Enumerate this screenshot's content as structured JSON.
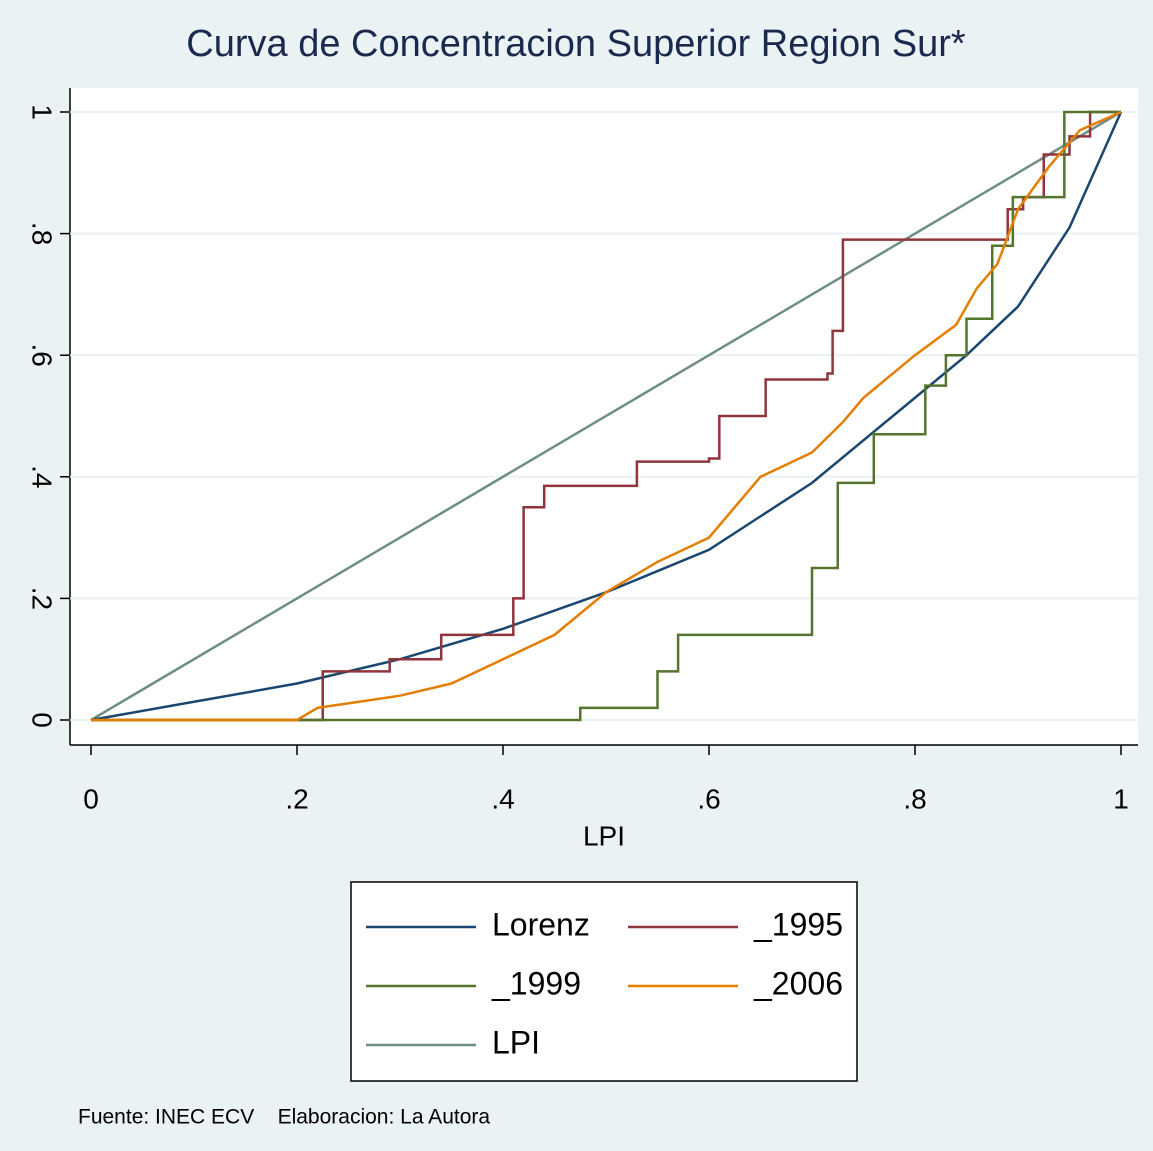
{
  "chart_data": {
    "type": "line",
    "title": "Curva de Concentracion Superior Region Sur*",
    "x_label": "LPI",
    "footnote": "Fuente: INEC ECV    Elaboracion: La Autora",
    "xlim": [
      0,
      1
    ],
    "ylim": [
      0,
      1
    ],
    "xticks": [
      0,
      {
        "value": 0.2,
        "label": ".2"
      },
      {
        "value": 0.4,
        "label": ".4"
      },
      {
        "value": 0.6,
        "label": ".6"
      },
      {
        "value": 0.8,
        "label": ".8"
      },
      1
    ],
    "yticks": [
      0,
      {
        "value": 0.2,
        "label": ".2"
      },
      {
        "value": 0.4,
        "label": ".4"
      },
      {
        "value": 0.6,
        "label": ".6"
      },
      {
        "value": 0.8,
        "label": ".8"
      },
      1
    ],
    "grid": true,
    "legend": "bottom",
    "series": [
      {
        "name": "Lorenz",
        "color": "#1a476f",
        "x": [
          0,
          0.1,
          0.2,
          0.3,
          0.4,
          0.5,
          0.6,
          0.7,
          0.8,
          0.85,
          0.9,
          0.95,
          1
        ],
        "values": [
          0,
          0.03,
          0.06,
          0.1,
          0.15,
          0.21,
          0.28,
          0.39,
          0.53,
          0.6,
          0.68,
          0.81,
          1
        ]
      },
      {
        "name": "_1995",
        "color": "#90353b",
        "x": [
          0,
          0.225,
          0.225,
          0.29,
          0.29,
          0.34,
          0.34,
          0.41,
          0.41,
          0.42,
          0.42,
          0.44,
          0.44,
          0.53,
          0.53,
          0.6,
          0.6,
          0.61,
          0.61,
          0.655,
          0.655,
          0.715,
          0.715,
          0.72,
          0.72,
          0.73,
          0.73,
          0.88,
          0.88,
          0.89,
          0.89,
          0.905,
          0.905,
          0.925,
          0.925,
          0.95,
          0.95,
          0.97,
          0.97,
          1
        ],
        "values": [
          0,
          0,
          0.08,
          0.08,
          0.1,
          0.1,
          0.14,
          0.14,
          0.2,
          0.2,
          0.35,
          0.35,
          0.385,
          0.385,
          0.425,
          0.425,
          0.43,
          0.43,
          0.5,
          0.5,
          0.56,
          0.56,
          0.57,
          0.57,
          0.64,
          0.64,
          0.79,
          0.79,
          0.79,
          0.79,
          0.84,
          0.84,
          0.86,
          0.86,
          0.93,
          0.93,
          0.96,
          0.96,
          1,
          1
        ]
      },
      {
        "name": "_1999",
        "color": "#55752f",
        "x": [
          0,
          0.475,
          0.475,
          0.55,
          0.55,
          0.57,
          0.57,
          0.7,
          0.7,
          0.725,
          0.725,
          0.76,
          0.76,
          0.81,
          0.81,
          0.83,
          0.83,
          0.85,
          0.85,
          0.875,
          0.875,
          0.895,
          0.895,
          0.945,
          0.945,
          1
        ],
        "values": [
          0,
          0,
          0.02,
          0.02,
          0.08,
          0.08,
          0.14,
          0.14,
          0.25,
          0.25,
          0.39,
          0.39,
          0.47,
          0.47,
          0.55,
          0.55,
          0.6,
          0.6,
          0.66,
          0.66,
          0.78,
          0.78,
          0.86,
          0.86,
          1,
          1
        ]
      },
      {
        "name": "_2006",
        "color": "#e37e00",
        "x": [
          0,
          0.2,
          0.22,
          0.3,
          0.35,
          0.4,
          0.45,
          0.5,
          0.55,
          0.6,
          0.65,
          0.7,
          0.73,
          0.75,
          0.8,
          0.84,
          0.86,
          0.88,
          0.9,
          0.93,
          0.96,
          1
        ],
        "values": [
          0,
          0,
          0.02,
          0.04,
          0.06,
          0.1,
          0.14,
          0.21,
          0.26,
          0.3,
          0.4,
          0.44,
          0.49,
          0.53,
          0.6,
          0.65,
          0.71,
          0.75,
          0.84,
          0.91,
          0.97,
          1
        ]
      },
      {
        "name": "LPI",
        "color": "#6e8e84",
        "x": [
          0,
          1
        ],
        "values": [
          0,
          1
        ]
      }
    ]
  }
}
